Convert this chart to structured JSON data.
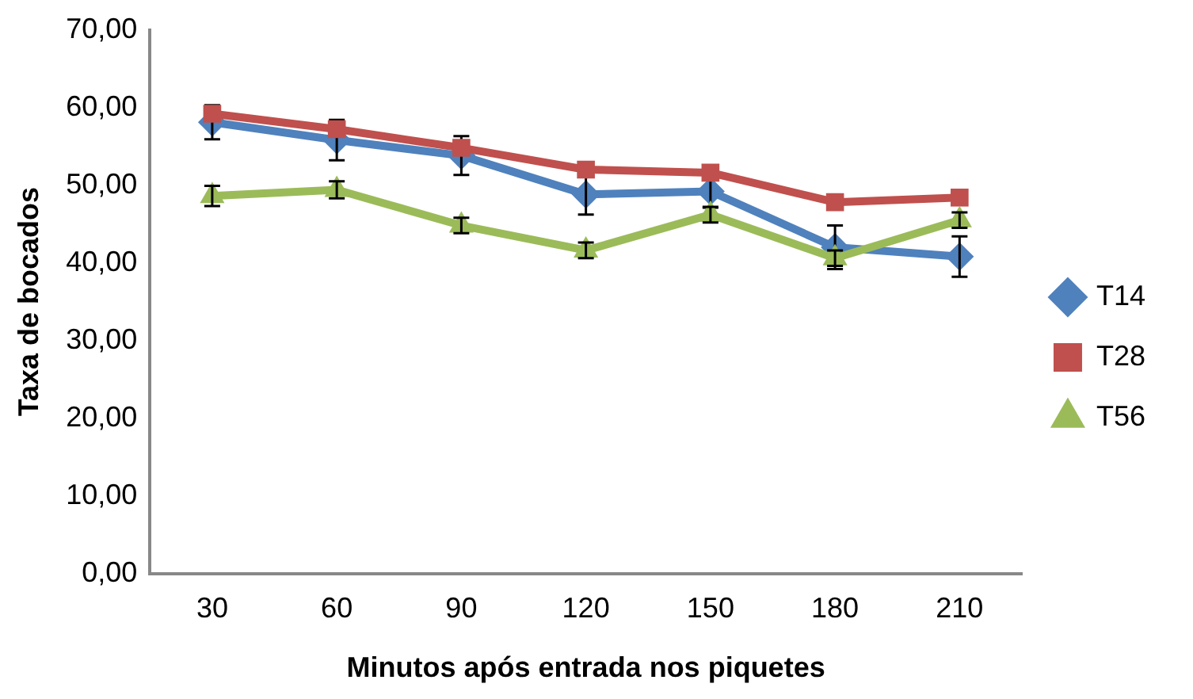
{
  "chart_data": {
    "type": "line",
    "xlabel": "Minutos após entrada nos piquetes",
    "ylabel": "Taxa de bocados",
    "categories": [
      "30",
      "60",
      "90",
      "120",
      "150",
      "180",
      "210"
    ],
    "series": [
      {
        "name": "T14",
        "color": "#4f81bd",
        "marker": "diamond",
        "values": [
          58.1,
          55.8,
          53.8,
          48.8,
          49.2,
          42.0,
          40.8
        ],
        "errors": [
          2.2,
          2.6,
          2.5,
          2.6,
          2.1,
          2.8,
          2.6
        ]
      },
      {
        "name": "T28",
        "color": "#c0504d",
        "marker": "square",
        "values": [
          59.2,
          57.2,
          54.8,
          52.0,
          51.6,
          47.8,
          48.4
        ]
      },
      {
        "name": "T56",
        "color": "#9bbb59",
        "marker": "triangle",
        "values": [
          48.6,
          49.4,
          44.8,
          41.6,
          46.2,
          40.6,
          45.5
        ],
        "errors": [
          1.3,
          1.1,
          1.0,
          1.0,
          1.0,
          1.0,
          1.0
        ]
      }
    ],
    "ylim": [
      0,
      70
    ],
    "yticks": [
      {
        "value": 0,
        "label": "0,00"
      },
      {
        "value": 10,
        "label": "10,00"
      },
      {
        "value": 20,
        "label": "20,00"
      },
      {
        "value": 30,
        "label": "30,00"
      },
      {
        "value": 40,
        "label": "40,00"
      },
      {
        "value": 50,
        "label": "50,00"
      },
      {
        "value": 60,
        "label": "60,00"
      },
      {
        "value": 70,
        "label": "70,00"
      }
    ],
    "grid": false,
    "legend": "right"
  }
}
